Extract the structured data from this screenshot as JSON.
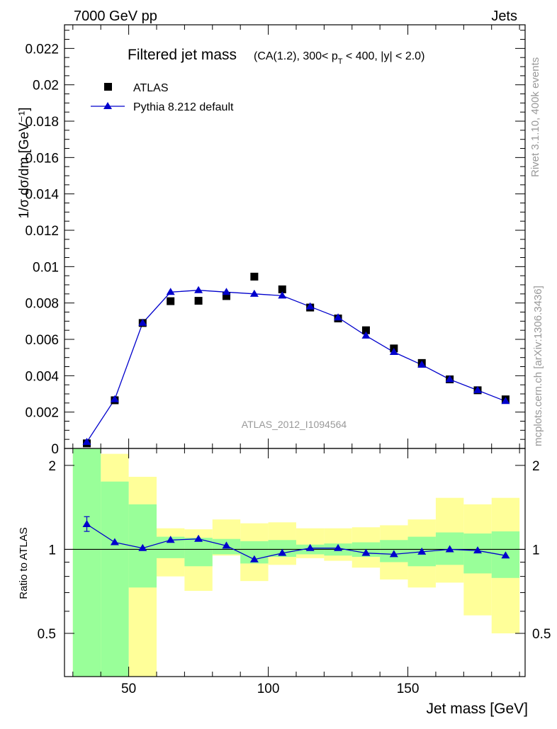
{
  "header": {
    "energy_label": "7000 GeV pp",
    "category_label": "Jets"
  },
  "side_labels": {
    "rivet": "Rivet 3.1.10,  400k events",
    "mcplots": "mcplots.cern.ch [arXiv:1306.3436]"
  },
  "chart_data": [
    {
      "type": "scatter",
      "title": "Filtered jet mass",
      "subtitle": "(CA(1.2), 300< p_T < 400, |y| < 2.0)",
      "ylabel": "1/σ dσ/dm [GeV⁻¹]",
      "reference_id": "ATLAS_2012_I1094564",
      "xlim": [
        27,
        192
      ],
      "ylim": [
        0,
        0.0233
      ],
      "y_ticks": [
        0,
        0.002,
        0.004,
        0.006,
        0.008,
        0.01,
        0.012,
        0.014,
        0.016,
        0.018,
        0.02,
        0.022
      ],
      "y_tick_labels": [
        "0",
        "0.002",
        "0.004",
        "0.006",
        "0.008",
        "0.01",
        "0.012",
        "0.014",
        "0.016",
        "0.018",
        "0.02",
        "0.022"
      ],
      "legend": {
        "placement": "top-left",
        "entries": [
          "ATLAS",
          "Pythia 8.212 default"
        ]
      },
      "series": [
        {
          "name": "ATLAS",
          "marker": "square",
          "color": "#000000",
          "x": [
            35,
            45,
            55,
            65,
            75,
            85,
            95,
            105,
            115,
            125,
            135,
            145,
            155,
            165,
            175,
            185
          ],
          "y": [
            0.00028,
            0.00265,
            0.0069,
            0.0081,
            0.00812,
            0.00838,
            0.00945,
            0.00875,
            0.00775,
            0.00715,
            0.0065,
            0.0055,
            0.0047,
            0.0038,
            0.0032,
            0.0027
          ]
        },
        {
          "name": "Pythia 8.212 default",
          "marker": "triangle",
          "color": "#0000cc",
          "x": [
            35,
            45,
            55,
            65,
            75,
            85,
            95,
            105,
            115,
            125,
            135,
            145,
            155,
            165,
            175,
            185
          ],
          "y": [
            0.00035,
            0.0027,
            0.0069,
            0.0086,
            0.0087,
            0.0086,
            0.0085,
            0.0084,
            0.0078,
            0.0072,
            0.0062,
            0.0053,
            0.0046,
            0.0038,
            0.0032,
            0.0026
          ]
        }
      ]
    },
    {
      "type": "line",
      "ylabel": "Ratio to ATLAS",
      "xlabel": "Jet mass [GeV]",
      "xlim": [
        27,
        192
      ],
      "ylim": [
        0.35,
        2.3
      ],
      "x_ticks": [
        50,
        100,
        150
      ],
      "x_tick_labels": [
        "50",
        "100",
        "150"
      ],
      "y_ticks": [
        0.5,
        1,
        2
      ],
      "y_tick_labels": [
        "0.5",
        "1",
        "2"
      ],
      "reference_line": 1,
      "bands": {
        "bins": [
          [
            30,
            40
          ],
          [
            40,
            50
          ],
          [
            50,
            60
          ],
          [
            60,
            70
          ],
          [
            70,
            80
          ],
          [
            80,
            90
          ],
          [
            90,
            100
          ],
          [
            100,
            110
          ],
          [
            110,
            120
          ],
          [
            120,
            130
          ],
          [
            130,
            140
          ],
          [
            140,
            150
          ],
          [
            150,
            160
          ],
          [
            160,
            170
          ],
          [
            170,
            180
          ],
          [
            180,
            190
          ]
        ],
        "inner_color": "#99ff99",
        "outer_color": "#ffff99",
        "inner_lo": [
          0.35,
          0.35,
          0.73,
          0.93,
          0.87,
          0.96,
          0.89,
          0.94,
          0.96,
          0.95,
          0.94,
          0.9,
          0.87,
          0.88,
          0.82,
          0.79
        ],
        "inner_hi": [
          2.3,
          1.75,
          1.45,
          1.11,
          1.1,
          1.09,
          1.07,
          1.08,
          1.04,
          1.05,
          1.06,
          1.08,
          1.11,
          1.15,
          1.14,
          1.16
        ],
        "outer_lo": [
          0.35,
          0.35,
          0.35,
          0.8,
          0.71,
          0.95,
          0.77,
          0.88,
          0.93,
          0.91,
          0.86,
          0.78,
          0.73,
          0.76,
          0.58,
          0.5
        ],
        "outer_hi": [
          2.3,
          2.2,
          1.82,
          1.19,
          1.18,
          1.28,
          1.24,
          1.25,
          1.19,
          1.19,
          1.2,
          1.22,
          1.28,
          1.53,
          1.45,
          1.53
        ]
      },
      "series": [
        {
          "name": "Pythia 8.212 default",
          "color": "#0000cc",
          "x": [
            35,
            45,
            55,
            65,
            75,
            85,
            95,
            105,
            115,
            125,
            135,
            145,
            155,
            165,
            175,
            185
          ],
          "y": [
            1.23,
            1.06,
            1.01,
            1.08,
            1.09,
            1.03,
            0.92,
            0.97,
            1.01,
            1.01,
            0.97,
            0.96,
            0.98,
            1.0,
            0.99,
            0.95
          ],
          "err_lo": [
            1.16,
            1.06,
            1.01,
            1.08,
            1.09,
            1.03,
            0.92,
            0.97,
            1.01,
            1.01,
            0.97,
            0.96,
            0.98,
            1.0,
            0.99,
            0.95
          ],
          "err_hi": [
            1.31,
            1.06,
            1.01,
            1.08,
            1.09,
            1.03,
            0.92,
            0.97,
            1.01,
            1.01,
            0.97,
            0.96,
            0.98,
            1.0,
            0.99,
            0.95
          ]
        }
      ]
    }
  ]
}
